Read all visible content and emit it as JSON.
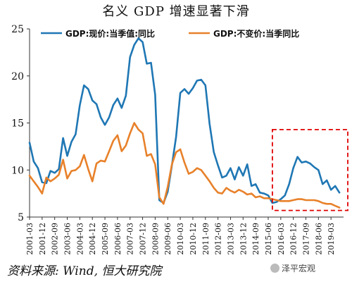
{
  "chart_data": {
    "type": "line",
    "title": "名义 GDP 增速显著下滑",
    "ylim": [
      5,
      25
    ],
    "yticks": [
      5,
      10,
      15,
      20,
      25
    ],
    "xlim": [
      "2001-03",
      "2019-12"
    ],
    "xticks": [
      "2001-03",
      "2001-12",
      "2002-09",
      "2003-06",
      "2004-03",
      "2004-12",
      "2005-09",
      "2006-06",
      "2007-03",
      "2007-12",
      "2008-09",
      "2009-06",
      "2010-03",
      "2010-12",
      "2011-09",
      "2012-06",
      "2013-03",
      "2013-12",
      "2014-09",
      "2015-06",
      "2016-03",
      "2016-12",
      "2017-09",
      "2018-06",
      "2019-03"
    ],
    "legend_position": "top-center",
    "series": [
      {
        "name": "GDP:现价:当季值:同比",
        "color": "#1f77b4",
        "points": [
          [
            "2001-03",
            12.9
          ],
          [
            "2001-06",
            10.9
          ],
          [
            "2001-09",
            10.2
          ],
          [
            "2001-12",
            8.7
          ],
          [
            "2002-03",
            8.6
          ],
          [
            "2002-06",
            9.9
          ],
          [
            "2002-09",
            9.7
          ],
          [
            "2002-12",
            10.1
          ],
          [
            "2003-03",
            13.4
          ],
          [
            "2003-06",
            11.5
          ],
          [
            "2003-09",
            13.0
          ],
          [
            "2003-12",
            13.8
          ],
          [
            "2004-03",
            16.9
          ],
          [
            "2004-06",
            19.0
          ],
          [
            "2004-09",
            18.6
          ],
          [
            "2004-12",
            17.4
          ],
          [
            "2005-03",
            17.0
          ],
          [
            "2005-06",
            15.6
          ],
          [
            "2005-09",
            14.8
          ],
          [
            "2005-12",
            15.6
          ],
          [
            "2006-03",
            16.9
          ],
          [
            "2006-06",
            17.6
          ],
          [
            "2006-09",
            16.6
          ],
          [
            "2006-12",
            17.9
          ],
          [
            "2007-03",
            22.0
          ],
          [
            "2007-06",
            23.3
          ],
          [
            "2007-09",
            24.0
          ],
          [
            "2007-12",
            23.6
          ],
          [
            "2008-03",
            21.3
          ],
          [
            "2008-06",
            21.4
          ],
          [
            "2008-09",
            18.0
          ],
          [
            "2008-12",
            6.8
          ],
          [
            "2009-03",
            6.5
          ],
          [
            "2009-06",
            7.7
          ],
          [
            "2009-09",
            10.5
          ],
          [
            "2009-12",
            13.5
          ],
          [
            "2010-03",
            18.2
          ],
          [
            "2010-06",
            18.6
          ],
          [
            "2010-09",
            18.1
          ],
          [
            "2010-12",
            18.7
          ],
          [
            "2011-03",
            19.5
          ],
          [
            "2011-06",
            19.6
          ],
          [
            "2011-09",
            19.0
          ],
          [
            "2011-12",
            14.9
          ],
          [
            "2012-03",
            11.9
          ],
          [
            "2012-06",
            10.5
          ],
          [
            "2012-09",
            9.2
          ],
          [
            "2012-12",
            9.4
          ],
          [
            "2013-03",
            10.2
          ],
          [
            "2013-06",
            9.0
          ],
          [
            "2013-09",
            10.3
          ],
          [
            "2013-12",
            9.4
          ],
          [
            "2014-03",
            10.6
          ],
          [
            "2014-06",
            8.3
          ],
          [
            "2014-09",
            8.5
          ],
          [
            "2014-12",
            7.6
          ],
          [
            "2015-03",
            7.5
          ],
          [
            "2015-06",
            7.3
          ],
          [
            "2015-09",
            6.5
          ],
          [
            "2015-12",
            6.6
          ],
          [
            "2016-03",
            6.9
          ],
          [
            "2016-06",
            7.3
          ],
          [
            "2016-09",
            8.5
          ],
          [
            "2016-12",
            10.2
          ],
          [
            "2017-03",
            11.4
          ],
          [
            "2017-06",
            10.8
          ],
          [
            "2017-09",
            10.9
          ],
          [
            "2017-12",
            10.7
          ],
          [
            "2018-03",
            10.3
          ],
          [
            "2018-06",
            10.0
          ],
          [
            "2018-09",
            8.5
          ],
          [
            "2018-12",
            8.9
          ],
          [
            "2019-03",
            7.9
          ],
          [
            "2019-06",
            8.3
          ],
          [
            "2019-09",
            7.6
          ]
        ]
      },
      {
        "name": "GDP:不变价:当季同比",
        "color": "#e8812a",
        "points": [
          [
            "2001-03",
            9.4
          ],
          [
            "2001-06",
            8.8
          ],
          [
            "2001-09",
            8.2
          ],
          [
            "2001-12",
            7.5
          ],
          [
            "2002-03",
            9.2
          ],
          [
            "2002-06",
            8.8
          ],
          [
            "2002-09",
            9.1
          ],
          [
            "2002-12",
            9.5
          ],
          [
            "2003-03",
            11.1
          ],
          [
            "2003-06",
            9.1
          ],
          [
            "2003-09",
            9.9
          ],
          [
            "2003-12",
            10.0
          ],
          [
            "2004-03",
            10.4
          ],
          [
            "2004-06",
            11.6
          ],
          [
            "2004-09",
            10.1
          ],
          [
            "2004-12",
            8.8
          ],
          [
            "2005-03",
            10.7
          ],
          [
            "2005-06",
            11.0
          ],
          [
            "2005-09",
            10.9
          ],
          [
            "2005-12",
            12.0
          ],
          [
            "2006-03",
            13.1
          ],
          [
            "2006-06",
            13.7
          ],
          [
            "2006-09",
            12.0
          ],
          [
            "2006-12",
            12.6
          ],
          [
            "2007-03",
            13.9
          ],
          [
            "2007-06",
            15.0
          ],
          [
            "2007-09",
            14.3
          ],
          [
            "2007-12",
            13.9
          ],
          [
            "2008-03",
            11.5
          ],
          [
            "2008-06",
            11.7
          ],
          [
            "2008-09",
            10.6
          ],
          [
            "2008-12",
            7.1
          ],
          [
            "2009-03",
            6.4
          ],
          [
            "2009-06",
            8.2
          ],
          [
            "2009-09",
            10.6
          ],
          [
            "2009-12",
            11.9
          ],
          [
            "2010-03",
            12.2
          ],
          [
            "2010-06",
            10.8
          ],
          [
            "2010-09",
            9.6
          ],
          [
            "2010-12",
            9.8
          ],
          [
            "2011-03",
            10.2
          ],
          [
            "2011-06",
            10.0
          ],
          [
            "2011-09",
            9.4
          ],
          [
            "2011-12",
            8.8
          ],
          [
            "2012-03",
            8.1
          ],
          [
            "2012-06",
            7.6
          ],
          [
            "2012-09",
            7.5
          ],
          [
            "2012-12",
            8.1
          ],
          [
            "2013-03",
            7.8
          ],
          [
            "2013-06",
            7.6
          ],
          [
            "2013-09",
            7.9
          ],
          [
            "2013-12",
            7.7
          ],
          [
            "2014-03",
            7.4
          ],
          [
            "2014-06",
            7.5
          ],
          [
            "2014-09",
            7.1
          ],
          [
            "2014-12",
            7.2
          ],
          [
            "2015-03",
            7.0
          ],
          [
            "2015-06",
            7.0
          ],
          [
            "2015-09",
            6.9
          ],
          [
            "2015-12",
            6.8
          ],
          [
            "2016-03",
            6.7
          ],
          [
            "2016-06",
            6.7
          ],
          [
            "2016-09",
            6.7
          ],
          [
            "2016-12",
            6.8
          ],
          [
            "2017-03",
            6.9
          ],
          [
            "2017-06",
            6.9
          ],
          [
            "2017-09",
            6.8
          ],
          [
            "2017-12",
            6.8
          ],
          [
            "2018-03",
            6.8
          ],
          [
            "2018-06",
            6.7
          ],
          [
            "2018-09",
            6.5
          ],
          [
            "2018-12",
            6.4
          ],
          [
            "2019-03",
            6.4
          ],
          [
            "2019-06",
            6.2
          ],
          [
            "2019-09",
            6.0
          ]
        ]
      }
    ],
    "highlight_box": {
      "from": "2015-09",
      "to": "2019-12",
      "y_from": 5.7,
      "y_to": 14.3,
      "color": "#e00000",
      "style": "dashed"
    }
  },
  "source_note": "资料来源: Wind, 恒大研究院",
  "watermark": "泽平宏观"
}
